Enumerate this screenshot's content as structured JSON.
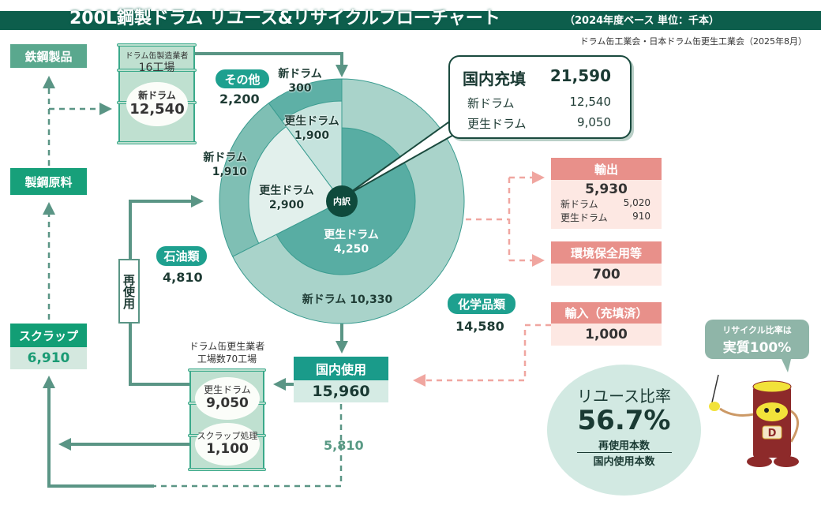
{
  "header": {
    "title": "200L鋼製ドラム リユース&リサイクルフローチャート",
    "subtitle": "（2024年度ベース 単位：千本）",
    "source": "ドラム缶工業会・日本ドラム缶更生工業会（2025年8月）"
  },
  "left": {
    "steel_products": "鉄鋼製品",
    "steel_raw": "製鋼原料",
    "scrap_label": "スクラップ",
    "scrap_value": "6,910",
    "reuse_label": "再使用"
  },
  "maker_drum": {
    "title": "ドラム缶製造業者",
    "factories": "16工場",
    "label": "新ドラム",
    "value": "12,540"
  },
  "recon_drum": {
    "title_line1": "ドラム缶更生業者",
    "title_line2": "工場数70工場",
    "renewed_label": "更生ドラム",
    "renewed_value": "9,050",
    "scrap_label": "スクラップ処理",
    "scrap_value": "1,100"
  },
  "pie": {
    "center_label": "内訳",
    "categories": [
      {
        "name": "化学品類",
        "total": "14,580",
        "new_label": "新ドラム",
        "new_value": 10330,
        "new_text": "10,330",
        "renewed_label": "更生ドラム",
        "renewed_value": 4250,
        "renewed_text": "4,250"
      },
      {
        "name": "石油類",
        "total": "4,810",
        "new_label": "新ドラム",
        "new_value": 1910,
        "new_text": "1,910",
        "renewed_label": "更生ドラム",
        "renewed_value": 2900,
        "renewed_text": "2,900"
      },
      {
        "name": "その他",
        "total": "2,200",
        "new_label": "新ドラム",
        "new_value": 300,
        "new_text": "300",
        "renewed_label": "更生ドラム",
        "renewed_value": 1900,
        "renewed_text": "1,900"
      }
    ],
    "colors": {
      "chem_new": "#a9d3ca",
      "chem_renewed": "#58ada3",
      "oil_new": "#7fbfb4",
      "oil_renewed": "#e2f0ec",
      "other_new": "#5eb0a6",
      "other_renewed": "#c5e3dd"
    }
  },
  "callout": {
    "title": "国内充填",
    "total": "21,590",
    "new_label": "新ドラム",
    "new_value": "12,540",
    "renewed_label": "更生ドラム",
    "renewed_value": "9,050"
  },
  "domestic_use": {
    "label": "国内使用",
    "value": "15,960",
    "scrap_flow": "5,810"
  },
  "export": {
    "label": "輸出",
    "value": "5,930",
    "new_label": "新ドラム",
    "new_value": "5,020",
    "renewed_label": "更生ドラム",
    "renewed_value": "910"
  },
  "environment": {
    "label": "環境保全用等",
    "value": "700"
  },
  "import": {
    "label": "輸入（充填済）",
    "value": "1,000"
  },
  "reuse_ratio": {
    "title": "リユース比率",
    "value": "56.7%",
    "numerator": "再使用本数",
    "denominator": "国内使用本数"
  },
  "mascot": {
    "bubble_line1": "リサイクル比率は",
    "bubble_line2": "実質100%",
    "drum_letter": "D"
  },
  "colors": {
    "dark_green": "#0d5e4c",
    "teal": "#1ea08f",
    "pink": "#e8908a",
    "pink_light": "#fde8e3",
    "arrow": "#5a9585"
  }
}
